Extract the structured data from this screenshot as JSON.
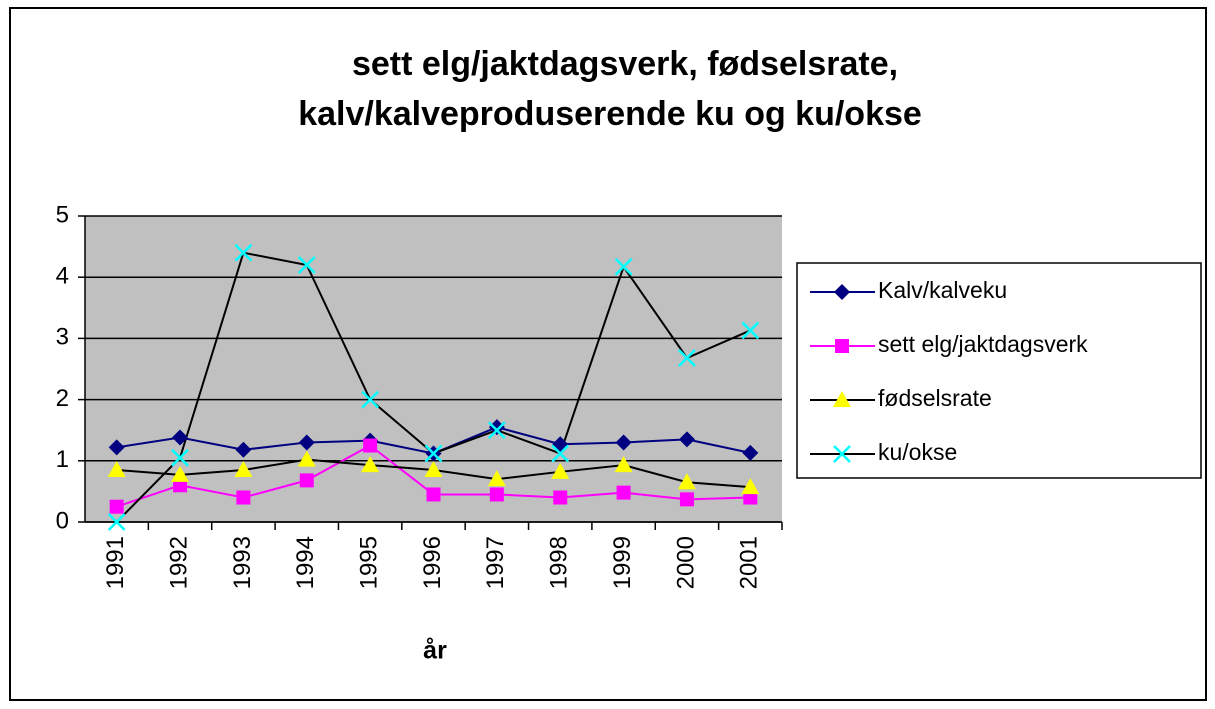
{
  "chart_data": {
    "type": "line",
    "title": [
      "sett elg/jaktdagsverk, fødselsrate,",
      "kalv/kalveproduserende ku og ku/okse"
    ],
    "x_label": "år",
    "categories": [
      "1991",
      "1992",
      "1993",
      "1994",
      "1995",
      "1996",
      "1997",
      "1998",
      "1999",
      "2000",
      "2001"
    ],
    "series": [
      {
        "name": "Kalv/kalveku",
        "color": "#000080",
        "line_color": "#000080",
        "marker": "diamond",
        "values": [
          1.22,
          1.38,
          1.18,
          1.3,
          1.33,
          1.12,
          1.55,
          1.27,
          1.3,
          1.35,
          1.13
        ]
      },
      {
        "name": "sett elg/jaktdagsverk",
        "color": "#ff00ff",
        "line_color": "#ff00ff",
        "marker": "square",
        "values": [
          0.25,
          0.6,
          0.4,
          0.68,
          1.25,
          0.45,
          0.45,
          0.4,
          0.48,
          0.37,
          0.4
        ]
      },
      {
        "name": "fødselsrate",
        "color": "#ffff00",
        "line_color": "#000000",
        "marker": "triangle",
        "values": [
          0.85,
          0.77,
          0.85,
          1.02,
          0.93,
          0.85,
          0.7,
          0.82,
          0.93,
          0.65,
          0.57
        ]
      },
      {
        "name": "ku/okse",
        "color": "#00ffff",
        "line_color": "#000000",
        "marker": "x",
        "values": [
          0,
          1.05,
          4.4,
          4.2,
          2.0,
          1.12,
          1.5,
          1.12,
          4.17,
          2.68,
          3.13
        ]
      }
    ],
    "ylim": [
      0,
      5
    ],
    "yticks": [
      0,
      1,
      2,
      3,
      4,
      5
    ],
    "grid": true,
    "plot_background": "#c0c0c0",
    "legend": "right"
  }
}
